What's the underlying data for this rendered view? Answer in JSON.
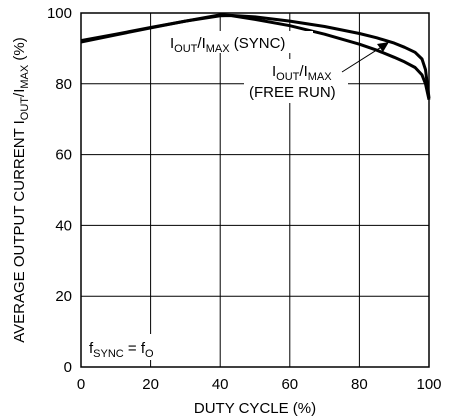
{
  "chart_data": {
    "type": "line",
    "xlabel": "DUTY CYCLE (%)",
    "ylabel_parts": [
      "AVERAGE OUTPUT CURRENT I",
      "OUT",
      "/I",
      "MAX",
      " (%)"
    ],
    "xlim": [
      0,
      100
    ],
    "ylim": [
      0,
      100
    ],
    "xticks": [
      "0",
      "20",
      "40",
      "60",
      "80",
      "100"
    ],
    "yticks": [
      "0",
      "20",
      "40",
      "60",
      "80",
      "100"
    ],
    "grid": true,
    "series": [
      {
        "label_parts": [
          "I",
          "OUT",
          "/I",
          "MAX",
          " (SYNC)"
        ],
        "x": [
          0,
          10,
          20,
          30,
          40,
          50,
          60,
          70,
          80,
          85,
          90,
          93,
          96,
          98,
          99,
          100
        ],
        "y": [
          92.2,
          94.0,
          95.9,
          97.7,
          99.5,
          98.9,
          97.7,
          96.2,
          94.2,
          93.0,
          91.5,
          90.3,
          88.9,
          87.0,
          84.0,
          76.0
        ]
      },
      {
        "label_parts": [
          "I",
          "OUT",
          "/I",
          "MAX"
        ],
        "label_line2": "(FREE RUN)",
        "x": [
          0,
          10,
          20,
          30,
          40,
          43,
          50,
          60,
          70,
          80,
          85,
          90,
          93,
          96,
          98,
          99,
          100
        ],
        "y": [
          91.8,
          93.8,
          95.8,
          97.7,
          99.2,
          99.3,
          98.2,
          96.4,
          94.0,
          91.2,
          89.5,
          87.5,
          86.2,
          84.6,
          82.5,
          80.0,
          75.5
        ]
      }
    ],
    "annotation_parts": [
      "f",
      "SYNC",
      " = f",
      "O"
    ]
  },
  "colors": {
    "line": "#000000",
    "grid": "#000000",
    "background": "#ffffff"
  }
}
